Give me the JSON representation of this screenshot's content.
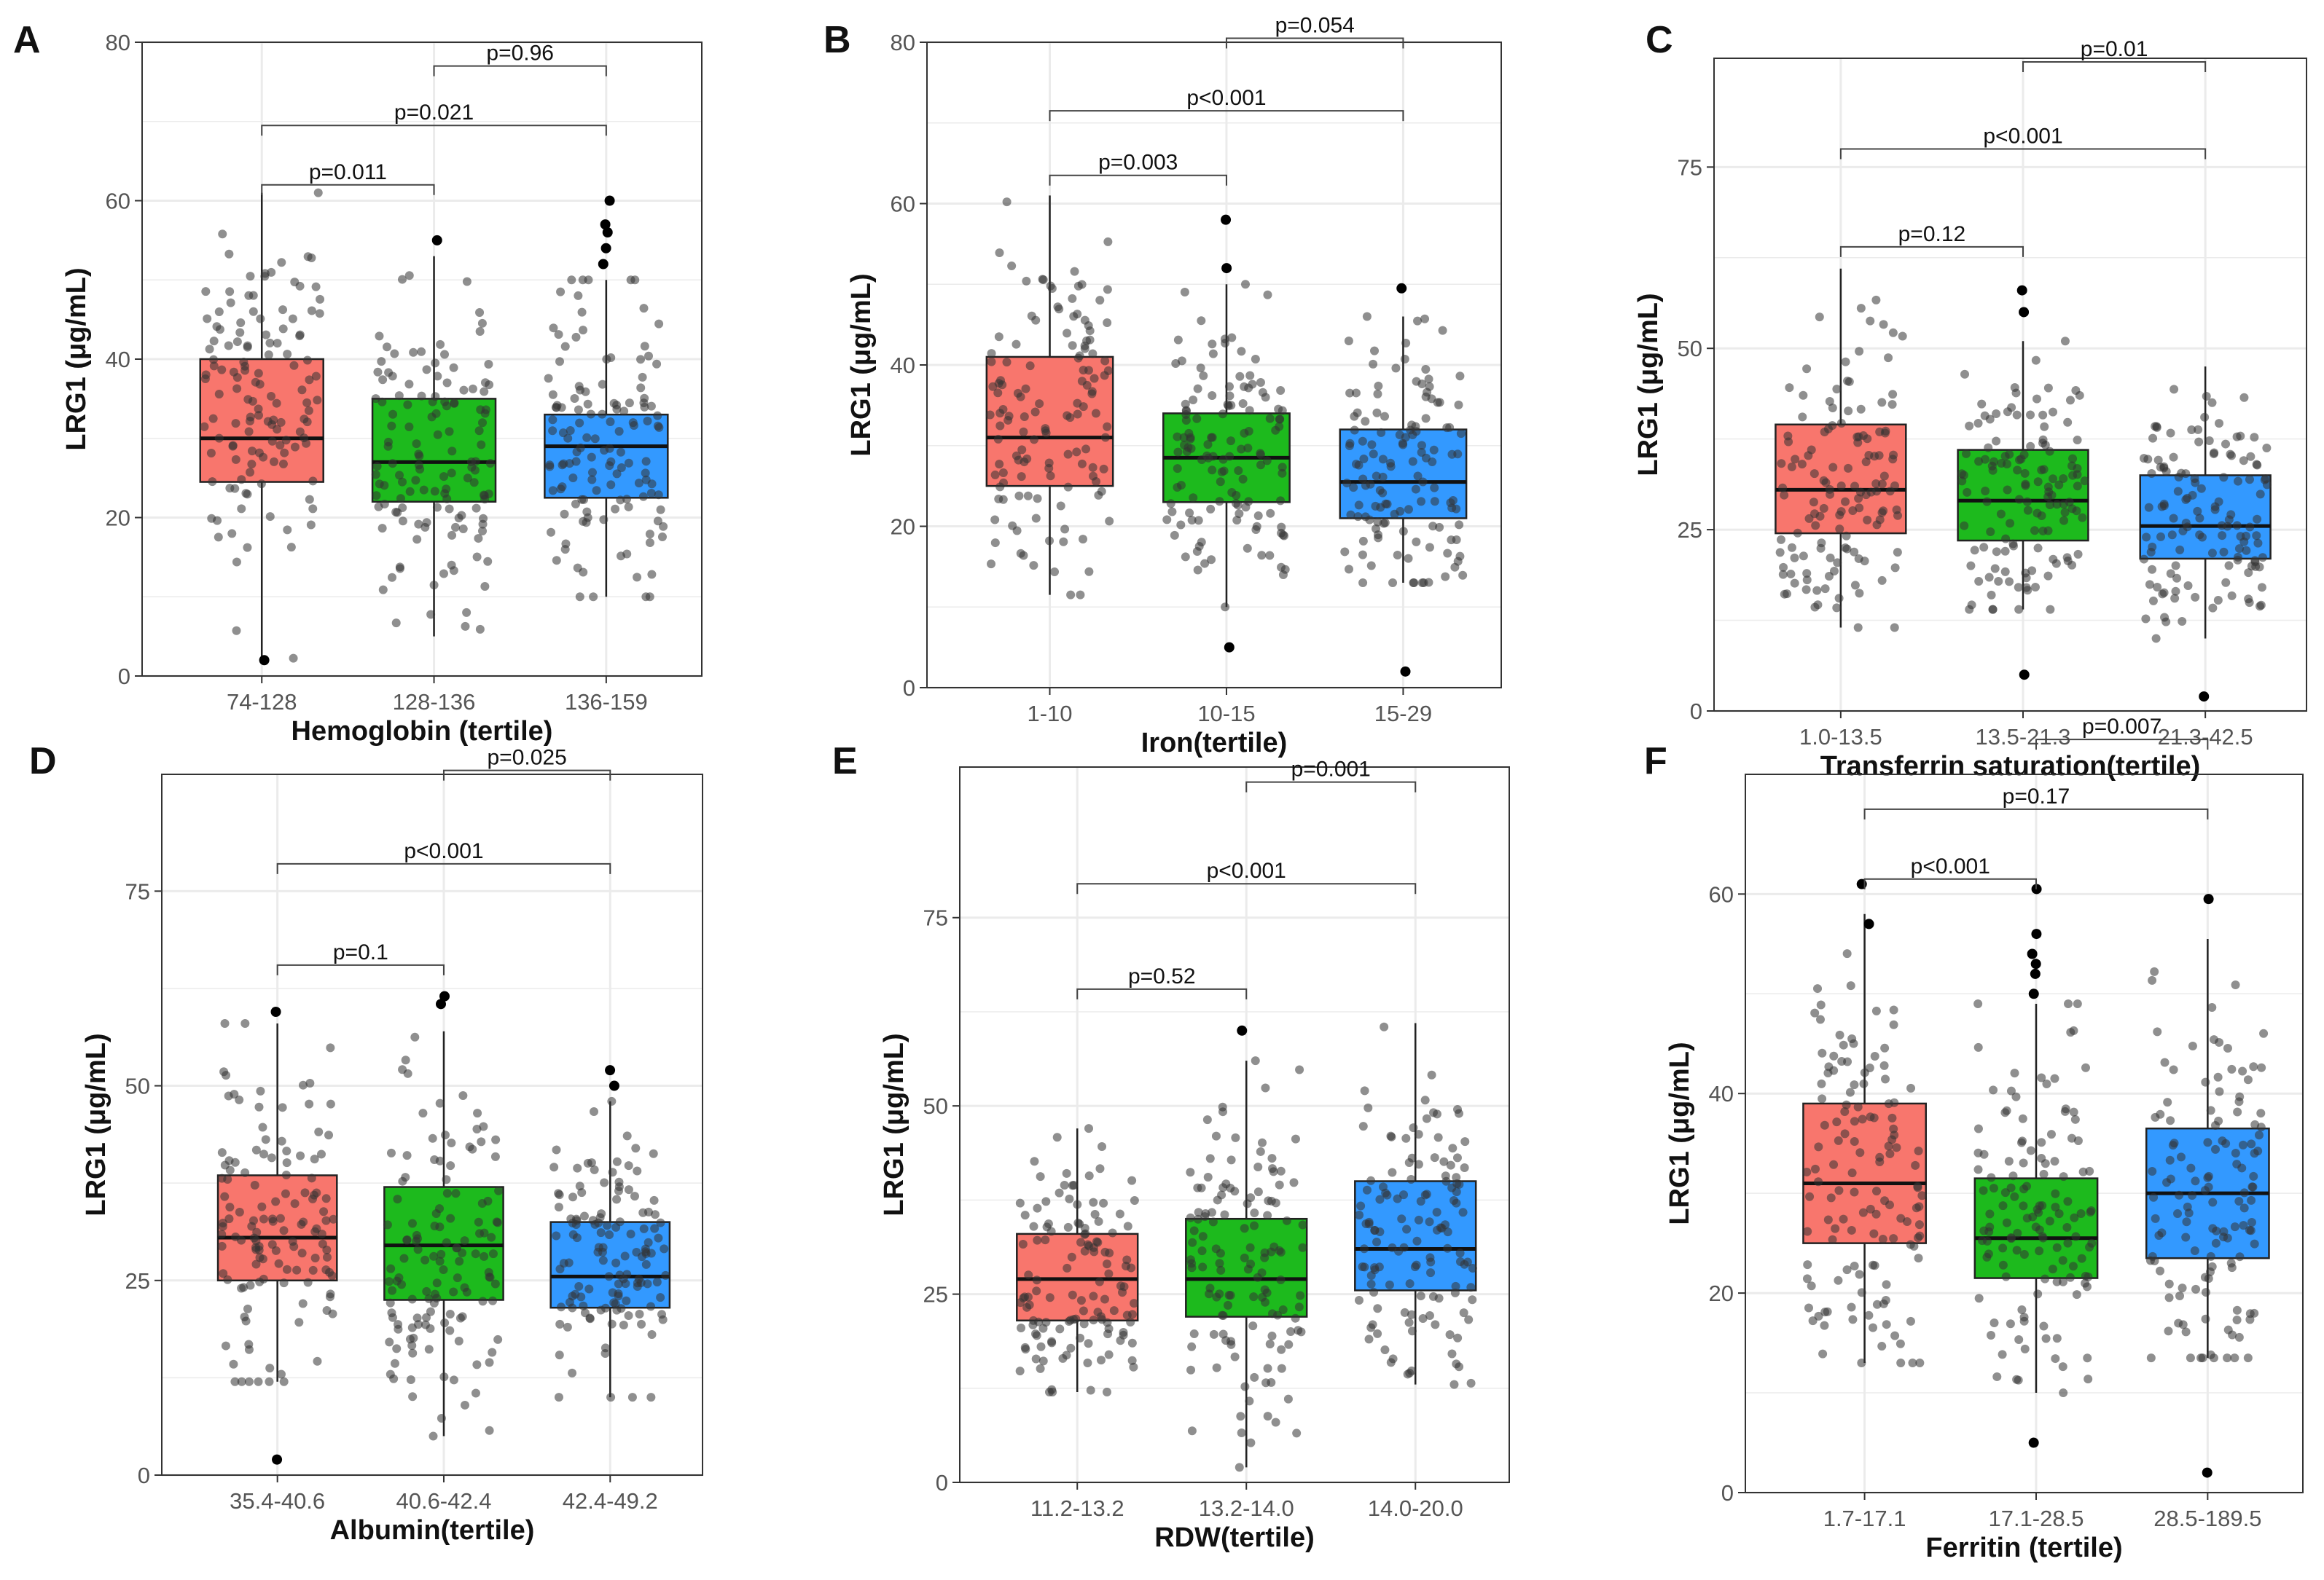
{
  "figure": {
    "colors": {
      "group1": "#F8766D",
      "group2": "#1DBA1D",
      "group3": "#3399FF",
      "grid": "#EBEBEB",
      "border": "#333333",
      "point": "#333333",
      "bracket": "#444444"
    }
  },
  "chart_data": [
    {
      "panel": "A",
      "type": "boxplot",
      "xlabel": "Hemoglobin (tertile)",
      "ylabel": "LRG1 (μg/mL)",
      "ylim": [
        0,
        80
      ],
      "yticks": [
        0,
        20,
        40,
        60,
        80
      ],
      "ytick_labels": [
        "0",
        "20",
        "40",
        "60",
        "80"
      ],
      "categories": [
        "74-128",
        "128-136",
        "136-159"
      ],
      "boxes": [
        {
          "min": 2,
          "q1": 24.5,
          "median": 30,
          "q3": 40,
          "max": 61,
          "outliers": [
            2
          ],
          "cluster": [
            34,
            12
          ]
        },
        {
          "min": 5,
          "q1": 22,
          "median": 27,
          "q3": 35,
          "max": 53,
          "outliers": [
            55
          ],
          "cluster": [
            29,
            10
          ]
        },
        {
          "min": 10,
          "q1": 22.5,
          "median": 29,
          "q3": 33,
          "max": 50,
          "outliers": [
            52,
            54,
            56,
            57,
            60
          ],
          "cluster": [
            29,
            10
          ]
        }
      ],
      "comparisons": [
        {
          "from": 1,
          "to": 2,
          "label": "p=0.96",
          "y": 77
        },
        {
          "from": 0,
          "to": 2,
          "label": "p=0.021",
          "y": 69.5
        },
        {
          "from": 0,
          "to": 1,
          "label": "p=0.011",
          "y": 62
        }
      ]
    },
    {
      "panel": "B",
      "type": "boxplot",
      "xlabel": "Iron(tertile)",
      "ylabel": "LRG1 (μg/mL)",
      "ylim": [
        0,
        80
      ],
      "yticks": [
        0,
        20,
        40,
        60,
        80
      ],
      "ytick_labels": [
        "0",
        "20",
        "40",
        "60",
        "80"
      ],
      "categories": [
        "1-10",
        "10-15",
        "15-29"
      ],
      "boxes": [
        {
          "min": 11.5,
          "q1": 25,
          "median": 31,
          "q3": 41,
          "max": 61,
          "outliers": [],
          "cluster": [
            32,
            11
          ]
        },
        {
          "min": 10,
          "q1": 23,
          "median": 28.5,
          "q3": 34,
          "max": 50,
          "outliers": [
            52,
            58,
            5
          ],
          "cluster": [
            29,
            9
          ]
        },
        {
          "min": 13,
          "q1": 21,
          "median": 25.5,
          "q3": 32,
          "max": 46,
          "outliers": [
            49.5,
            2
          ],
          "cluster": [
            27,
            8
          ]
        }
      ],
      "comparisons": [
        {
          "from": 1,
          "to": 2,
          "label": "p=0.054",
          "y": 80.5
        },
        {
          "from": 0,
          "to": 2,
          "label": "p<0.001",
          "y": 71.5
        },
        {
          "from": 0,
          "to": 1,
          "label": "p=0.003",
          "y": 63.5
        }
      ]
    },
    {
      "panel": "C",
      "type": "boxplot",
      "xlabel": "Transferrin saturation(tertile)",
      "ylabel": "LRG1 (μg/mL)",
      "ylim": [
        0,
        90
      ],
      "yticks": [
        0,
        25,
        50,
        75
      ],
      "ytick_labels": [
        "0",
        "25",
        "50",
        "75"
      ],
      "categories": [
        "1.0-13.5",
        "13.5-21.3",
        "21.3-42.5"
      ],
      "boxes": [
        {
          "min": 11.5,
          "q1": 24.5,
          "median": 30.5,
          "q3": 39.5,
          "max": 61,
          "outliers": [],
          "cluster": [
            32,
            11
          ]
        },
        {
          "min": 14,
          "q1": 23.5,
          "median": 29,
          "q3": 36,
          "max": 51,
          "outliers": [
            55,
            58,
            5
          ],
          "cluster": [
            30,
            10
          ]
        },
        {
          "min": 10,
          "q1": 21,
          "median": 25.5,
          "q3": 32.5,
          "max": 47.5,
          "outliers": [
            2
          ],
          "cluster": [
            27,
            8
          ]
        }
      ],
      "comparisons": [
        {
          "from": 1,
          "to": 2,
          "label": "p=0.01",
          "y": 89.5
        },
        {
          "from": 0,
          "to": 2,
          "label": "p<0.001",
          "y": 77.5
        },
        {
          "from": 0,
          "to": 1,
          "label": "p=0.12",
          "y": 64
        }
      ]
    },
    {
      "panel": "D",
      "type": "boxplot",
      "xlabel": "Albumin(tertile)",
      "ylabel": "LRG1 (μg/mL)",
      "ylim": [
        0,
        90
      ],
      "yticks": [
        0,
        25,
        50,
        75
      ],
      "ytick_labels": [
        "0",
        "25",
        "50",
        "75"
      ],
      "categories": [
        "35.4-40.6",
        "40.6-42.4",
        "42.4-49.2"
      ],
      "boxes": [
        {
          "min": 12,
          "q1": 25,
          "median": 30.5,
          "q3": 38.5,
          "max": 58,
          "outliers": [
            59.5,
            2
          ],
          "cluster": [
            32,
            11
          ]
        },
        {
          "min": 5,
          "q1": 22.5,
          "median": 29.5,
          "q3": 37,
          "max": 57,
          "outliers": [
            60.5,
            61.5
          ],
          "cluster": [
            30,
            11
          ]
        },
        {
          "min": 10,
          "q1": 21.5,
          "median": 25.5,
          "q3": 32.5,
          "max": 48,
          "outliers": [
            50,
            52
          ],
          "cluster": [
            27,
            8
          ]
        }
      ],
      "comparisons": [
        {
          "from": 1,
          "to": 2,
          "label": "p=0.025",
          "y": 90.5
        },
        {
          "from": 0,
          "to": 2,
          "label": "p<0.001",
          "y": 78.5
        },
        {
          "from": 0,
          "to": 1,
          "label": "p=0.1",
          "y": 65.5
        }
      ]
    },
    {
      "panel": "E",
      "type": "boxplot",
      "xlabel": "RDW(tertile)",
      "ylabel": "LRG1 (μg/mL)",
      "ylim": [
        0,
        95
      ],
      "yticks": [
        0,
        25,
        50,
        75
      ],
      "ytick_labels": [
        "0",
        "25",
        "50",
        "75"
      ],
      "categories": [
        "11.2-13.2",
        "13.2-14.0",
        "14.0-20.0"
      ],
      "boxes": [
        {
          "min": 12,
          "q1": 21.5,
          "median": 27,
          "q3": 33,
          "max": 47,
          "outliers": [],
          "cluster": [
            27,
            8
          ]
        },
        {
          "min": 2,
          "q1": 22,
          "median": 27,
          "q3": 35,
          "max": 56,
          "outliers": [
            60
          ],
          "cluster": [
            29,
            11
          ]
        },
        {
          "min": 13,
          "q1": 25.5,
          "median": 31,
          "q3": 40,
          "max": 61,
          "outliers": [],
          "cluster": [
            33,
            10
          ]
        }
      ],
      "comparisons": [
        {
          "from": 1,
          "to": 2,
          "label": "p=0.001",
          "y": 93
        },
        {
          "from": 0,
          "to": 2,
          "label": "p<0.001",
          "y": 79.5
        },
        {
          "from": 0,
          "to": 1,
          "label": "p=0.52",
          "y": 65.5
        }
      ]
    },
    {
      "panel": "F",
      "type": "boxplot",
      "xlabel": "Ferritin (tertile)",
      "ylabel": "LRG1 (μg/mL)",
      "ylim": [
        0,
        72
      ],
      "yticks": [
        0,
        20,
        40,
        60
      ],
      "ytick_labels": [
        "0",
        "20",
        "40",
        "60"
      ],
      "categories": [
        "1.7-17.1",
        "17.1-28.5",
        "28.5-189.5"
      ],
      "boxes": [
        {
          "min": 13,
          "q1": 25,
          "median": 31,
          "q3": 39,
          "max": 58,
          "outliers": [
            61,
            57
          ],
          "cluster": [
            32,
            10
          ]
        },
        {
          "min": 10,
          "q1": 21.5,
          "median": 25.5,
          "q3": 31.5,
          "max": 49,
          "outliers": [
            50,
            52,
            53,
            54,
            56,
            60.5,
            5
          ],
          "cluster": [
            28,
            9
          ]
        },
        {
          "min": 13.5,
          "q1": 23.5,
          "median": 30,
          "q3": 36.5,
          "max": 55.5,
          "outliers": [
            59.5,
            2
          ],
          "cluster": [
            31,
            10
          ]
        }
      ],
      "comparisons": [
        {
          "from": 1,
          "to": 2,
          "label": "p=0.007",
          "y": 75.5
        },
        {
          "from": 0,
          "to": 2,
          "label": "p=0.17",
          "y": 68.5
        },
        {
          "from": 0,
          "to": 1,
          "label": "p<0.001",
          "y": 61.5
        }
      ]
    }
  ]
}
